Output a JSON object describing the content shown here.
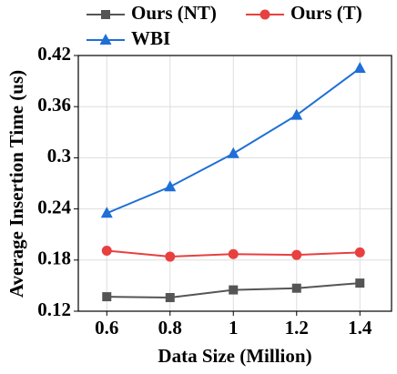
{
  "chart_data": {
    "type": "line",
    "x_label": "Data Size (Million)",
    "y_label": "Average Insertion Time (us)",
    "x": [
      0.6,
      0.8,
      1,
      1.2,
      1.4
    ],
    "series": [
      {
        "name": "Ours (NT)",
        "color": "#555555",
        "marker": "square",
        "values": [
          0.137,
          0.136,
          0.145,
          0.147,
          0.153
        ]
      },
      {
        "name": "Ours (T)",
        "color": "#e8403f",
        "marker": "circle",
        "values": [
          0.191,
          0.184,
          0.187,
          0.186,
          0.189
        ]
      },
      {
        "name": "WBI",
        "color": "#1f6fd6",
        "marker": "triangle",
        "values": [
          0.235,
          0.266,
          0.305,
          0.35,
          0.405
        ]
      }
    ],
    "xlim": [
      0.51,
      1.5
    ],
    "ylim": [
      0.12,
      0.42
    ],
    "xticks": [
      0.6,
      0.8,
      1,
      1.2,
      1.4
    ],
    "yticks": [
      0.12,
      0.18,
      0.24,
      0.3,
      0.36,
      0.42
    ],
    "grid": true
  }
}
